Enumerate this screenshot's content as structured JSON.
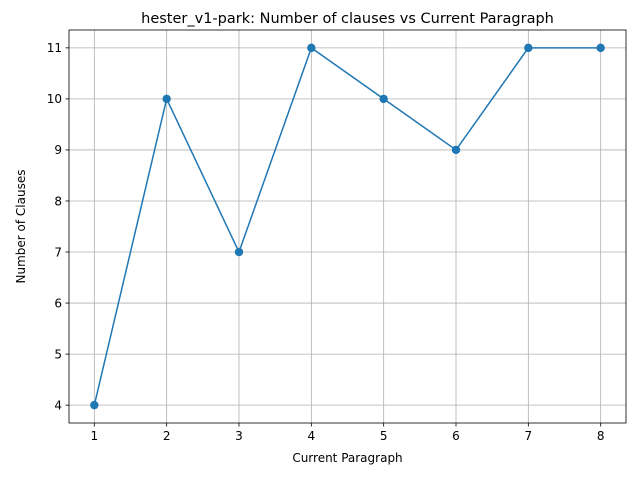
{
  "chart_data": {
    "type": "line",
    "title": "hester_v1-park: Number of clauses vs Current Paragraph",
    "xlabel": "Current Paragraph",
    "ylabel": "Number of Clauses",
    "x": [
      1,
      2,
      3,
      4,
      5,
      6,
      7,
      8
    ],
    "series": [
      {
        "values": [
          4,
          10,
          7,
          11,
          10,
          9,
          11,
          11
        ]
      }
    ],
    "xticks": [
      "1",
      "2",
      "3",
      "4",
      "5",
      "6",
      "7",
      "8"
    ],
    "yticks": [
      "4",
      "5",
      "6",
      "7",
      "8",
      "9",
      "10",
      "11"
    ],
    "xlim": [
      0.65,
      8.35
    ],
    "ylim": [
      3.65,
      11.35
    ],
    "grid": true,
    "line_color": "#1f77b4",
    "marker": "circle"
  }
}
